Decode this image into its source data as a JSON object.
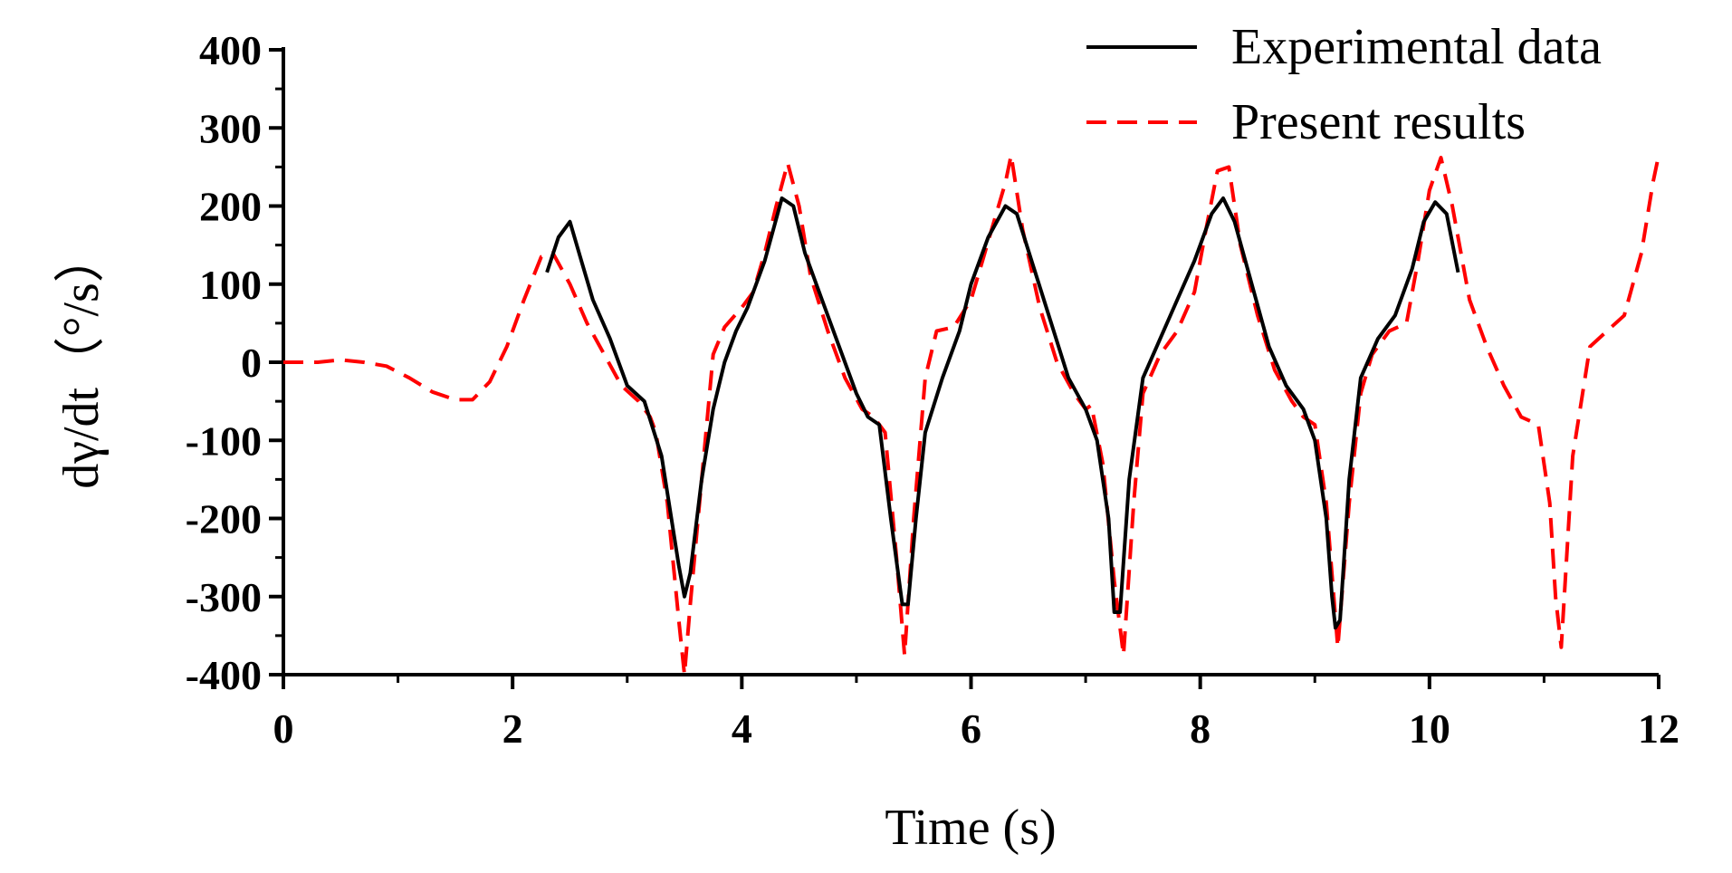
{
  "chart_data": {
    "type": "line",
    "title": "",
    "xlabel": "Time (s)",
    "ylabel": "dγ/dt（°/s）",
    "xlim": [
      0,
      12
    ],
    "ylim": [
      -400,
      400
    ],
    "x_ticks": [
      0,
      2,
      4,
      6,
      8,
      10,
      12
    ],
    "y_ticks": [
      -400,
      -300,
      -200,
      -100,
      0,
      100,
      200,
      300,
      400
    ],
    "x_tick_labels": [
      "0",
      "2",
      "4",
      "6",
      "8",
      "10",
      "12"
    ],
    "y_tick_labels": [
      "-400",
      "-300",
      "-200",
      "-100",
      "0",
      "100",
      "200",
      "300",
      "400"
    ],
    "grid": false,
    "legend_position": "top-right",
    "series": [
      {
        "name": "Experimental data",
        "color": "#000000",
        "style": "solid",
        "points": [
          [
            2.3,
            115
          ],
          [
            2.4,
            160
          ],
          [
            2.5,
            180
          ],
          [
            2.6,
            130
          ],
          [
            2.7,
            80
          ],
          [
            2.85,
            30
          ],
          [
            3.0,
            -30
          ],
          [
            3.15,
            -50
          ],
          [
            3.3,
            -120
          ],
          [
            3.45,
            -260
          ],
          [
            3.5,
            -300
          ],
          [
            3.55,
            -270
          ],
          [
            3.65,
            -150
          ],
          [
            3.75,
            -60
          ],
          [
            3.85,
            0
          ],
          [
            3.95,
            40
          ],
          [
            4.05,
            70
          ],
          [
            4.2,
            130
          ],
          [
            4.35,
            210
          ],
          [
            4.45,
            200
          ],
          [
            4.55,
            140
          ],
          [
            4.7,
            80
          ],
          [
            4.85,
            20
          ],
          [
            5.0,
            -40
          ],
          [
            5.1,
            -70
          ],
          [
            5.2,
            -80
          ],
          [
            5.3,
            -200
          ],
          [
            5.4,
            -310
          ],
          [
            5.45,
            -310
          ],
          [
            5.52,
            -200
          ],
          [
            5.6,
            -90
          ],
          [
            5.75,
            -20
          ],
          [
            5.9,
            40
          ],
          [
            6.0,
            100
          ],
          [
            6.15,
            160
          ],
          [
            6.3,
            200
          ],
          [
            6.4,
            190
          ],
          [
            6.55,
            120
          ],
          [
            6.7,
            50
          ],
          [
            6.85,
            -20
          ],
          [
            7.0,
            -60
          ],
          [
            7.1,
            -100
          ],
          [
            7.2,
            -200
          ],
          [
            7.25,
            -320
          ],
          [
            7.3,
            -320
          ],
          [
            7.38,
            -150
          ],
          [
            7.5,
            -20
          ],
          [
            7.65,
            30
          ],
          [
            7.8,
            80
          ],
          [
            7.95,
            130
          ],
          [
            8.1,
            190
          ],
          [
            8.2,
            210
          ],
          [
            8.3,
            180
          ],
          [
            8.45,
            100
          ],
          [
            8.6,
            20
          ],
          [
            8.75,
            -30
          ],
          [
            8.9,
            -60
          ],
          [
            9.0,
            -100
          ],
          [
            9.1,
            -200
          ],
          [
            9.15,
            -300
          ],
          [
            9.18,
            -340
          ],
          [
            9.22,
            -330
          ],
          [
            9.3,
            -150
          ],
          [
            9.4,
            -20
          ],
          [
            9.55,
            30
          ],
          [
            9.7,
            60
          ],
          [
            9.85,
            120
          ],
          [
            9.95,
            180
          ],
          [
            10.05,
            205
          ],
          [
            10.15,
            190
          ],
          [
            10.25,
            115
          ]
        ]
      },
      {
        "name": "Present results",
        "color": "#ff0000",
        "style": "dashed",
        "points": [
          [
            0,
            0
          ],
          [
            0.3,
            0
          ],
          [
            0.5,
            3
          ],
          [
            0.7,
            0
          ],
          [
            0.9,
            -5
          ],
          [
            1.1,
            -20
          ],
          [
            1.3,
            -38
          ],
          [
            1.5,
            -48
          ],
          [
            1.65,
            -48
          ],
          [
            1.8,
            -25
          ],
          [
            1.95,
            20
          ],
          [
            2.1,
            80
          ],
          [
            2.25,
            135
          ],
          [
            2.35,
            140
          ],
          [
            2.5,
            100
          ],
          [
            2.65,
            50
          ],
          [
            2.8,
            10
          ],
          [
            2.95,
            -30
          ],
          [
            3.1,
            -50
          ],
          [
            3.2,
            -70
          ],
          [
            3.25,
            -90
          ],
          [
            3.35,
            -180
          ],
          [
            3.45,
            -330
          ],
          [
            3.5,
            -400
          ],
          [
            3.55,
            -310
          ],
          [
            3.65,
            -150
          ],
          [
            3.75,
            10
          ],
          [
            3.85,
            45
          ],
          [
            4.0,
            70
          ],
          [
            4.1,
            90
          ],
          [
            4.2,
            140
          ],
          [
            4.3,
            200
          ],
          [
            4.4,
            255
          ],
          [
            4.5,
            200
          ],
          [
            4.6,
            110
          ],
          [
            4.75,
            40
          ],
          [
            4.9,
            -20
          ],
          [
            5.05,
            -60
          ],
          [
            5.15,
            -70
          ],
          [
            5.25,
            -90
          ],
          [
            5.35,
            -250
          ],
          [
            5.42,
            -375
          ],
          [
            5.5,
            -200
          ],
          [
            5.6,
            -20
          ],
          [
            5.7,
            40
          ],
          [
            5.85,
            45
          ],
          [
            6.0,
            80
          ],
          [
            6.1,
            130
          ],
          [
            6.2,
            180
          ],
          [
            6.3,
            230
          ],
          [
            6.35,
            265
          ],
          [
            6.45,
            170
          ],
          [
            6.6,
            70
          ],
          [
            6.75,
            0
          ],
          [
            6.9,
            -40
          ],
          [
            7.0,
            -60
          ],
          [
            7.05,
            -55
          ],
          [
            7.15,
            -130
          ],
          [
            7.25,
            -280
          ],
          [
            7.33,
            -375
          ],
          [
            7.42,
            -180
          ],
          [
            7.5,
            -40
          ],
          [
            7.65,
            10
          ],
          [
            7.8,
            40
          ],
          [
            7.95,
            90
          ],
          [
            8.05,
            170
          ],
          [
            8.15,
            245
          ],
          [
            8.25,
            250
          ],
          [
            8.35,
            150
          ],
          [
            8.5,
            60
          ],
          [
            8.65,
            -10
          ],
          [
            8.8,
            -50
          ],
          [
            8.9,
            -70
          ],
          [
            9.0,
            -80
          ],
          [
            9.1,
            -180
          ],
          [
            9.2,
            -365
          ],
          [
            9.3,
            -180
          ],
          [
            9.4,
            -40
          ],
          [
            9.5,
            10
          ],
          [
            9.65,
            40
          ],
          [
            9.8,
            50
          ],
          [
            9.9,
            130
          ],
          [
            10.0,
            220
          ],
          [
            10.1,
            262
          ],
          [
            10.2,
            200
          ],
          [
            10.35,
            80
          ],
          [
            10.5,
            20
          ],
          [
            10.65,
            -30
          ],
          [
            10.8,
            -70
          ],
          [
            10.95,
            -80
          ],
          [
            11.05,
            -180
          ],
          [
            11.1,
            -300
          ],
          [
            11.15,
            -365
          ],
          [
            11.25,
            -120
          ],
          [
            11.4,
            20
          ],
          [
            11.55,
            40
          ],
          [
            11.7,
            60
          ],
          [
            11.85,
            140
          ],
          [
            11.95,
            230
          ],
          [
            12.0,
            265
          ]
        ]
      }
    ]
  }
}
